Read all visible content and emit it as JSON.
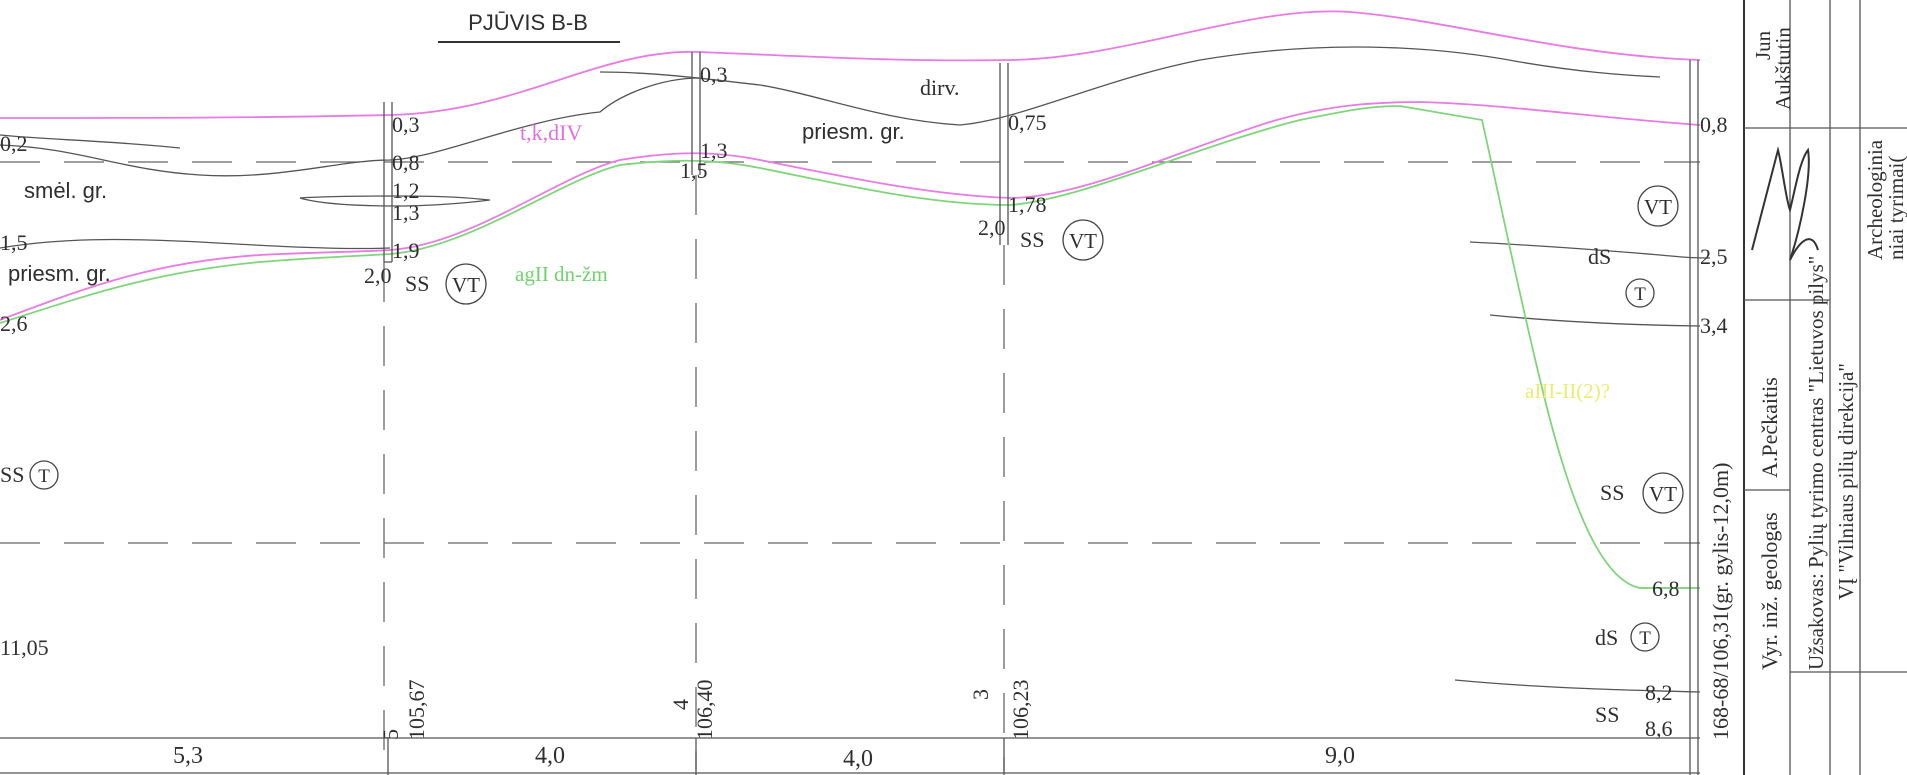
{
  "title": "PJŪVIS B-B",
  "soil_labels": {
    "smel_gr": "smėl. gr.",
    "priesm_gr_left": "priesm. gr.",
    "priesm_gr_mid": "priesm. gr.",
    "dirv": "dirv.",
    "tkdiv": "t,k,dIV",
    "aglldnzm": "agII dn-žm",
    "alll": "aIII-II(2)?"
  },
  "left_labels": {
    "d02": "0,2",
    "d15": "1,5",
    "d26": "2,6",
    "d1105": "11,05",
    "ss_t": "SS",
    "t": "T"
  },
  "borehole5": {
    "number": "5",
    "elevation": "105,67",
    "depths": [
      "0,3",
      "0,8",
      "1,2",
      "1,3",
      "1,9",
      "2,0"
    ],
    "ss": "SS",
    "vt": "VT"
  },
  "borehole4": {
    "number": "4",
    "elevation": "106,40",
    "depths": [
      "0,3",
      "1,3",
      "1,5"
    ]
  },
  "borehole3": {
    "number": "3",
    "elevation": "106,23",
    "depths": [
      "0,75",
      "1,78",
      "2,0"
    ],
    "ss": "SS",
    "vt": "VT"
  },
  "borehole168": {
    "label": "168-68/106,31(gr. gylis-12,0m)",
    "depths": [
      "0,8",
      "2,5",
      "3,4",
      "6,8",
      "8,2",
      "8,6"
    ],
    "vt1": "VT",
    "ds": "dS",
    "t1": "T",
    "ss": "SS",
    "vt2": "VT",
    "ds2": "dS",
    "t2": "T",
    "ss2": "SS"
  },
  "distances": [
    "5,3",
    "4,0",
    "4,0",
    "9,0"
  ],
  "title_block": {
    "col1": "Vyr. inž. geologas",
    "col2": "A.Pečkaitis",
    "col4_line1": "Užsakovas: Pylių tyrimo centras \"Lietuvos pilys\"",
    "col4_line2": "VĮ \"Vilniaus pilių direkcija\"",
    "col5_line1": "Archeologinia",
    "col5_line2": "niai tyrimai(",
    "col6_line1": "Jun",
    "col6_line2": "Aukštutin"
  },
  "colors": {
    "pink_line": "#e87be4",
    "green_line": "#7fd67a",
    "text": "#2f2f2f"
  }
}
